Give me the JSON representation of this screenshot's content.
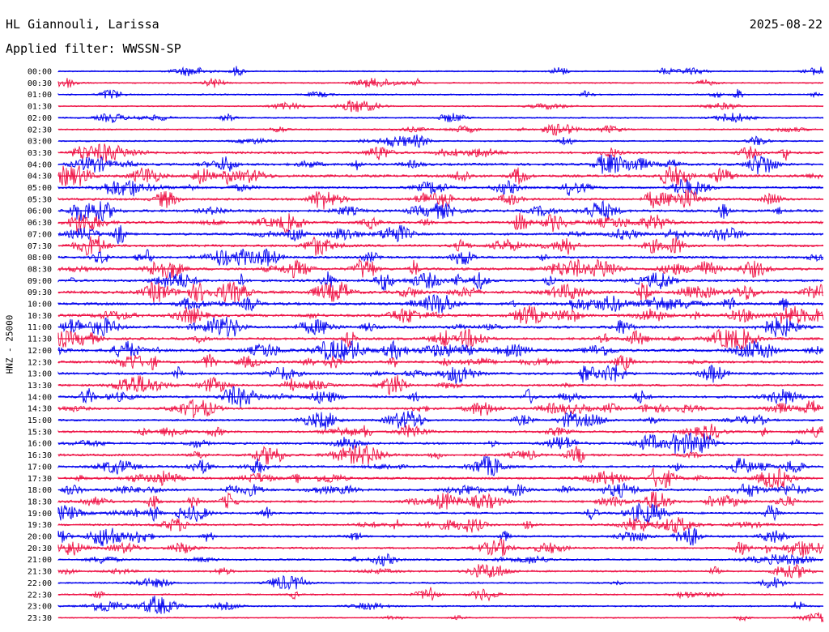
{
  "header": {
    "station": "HL Giannouli, Larissa",
    "date": "2025-08-22",
    "filter": "Applied filter: WWSSN-SP"
  },
  "chart_data": {
    "type": "line",
    "title": "HL Giannouli, Larissa",
    "ylabel": "HNZ - 25000",
    "row_colors": [
      "#0000ee",
      "#ee1144"
    ],
    "categories": [
      "00:00",
      "00:30",
      "01:00",
      "01:30",
      "02:00",
      "02:30",
      "03:00",
      "03:30",
      "04:00",
      "04:30",
      "05:00",
      "05:30",
      "06:00",
      "06:30",
      "07:00",
      "07:30",
      "08:00",
      "08:30",
      "09:00",
      "09:30",
      "10:00",
      "10:30",
      "11:00",
      "11:30",
      "12:00",
      "12:30",
      "13:00",
      "13:30",
      "14:00",
      "14:30",
      "15:00",
      "15:30",
      "16:00",
      "16:30",
      "17:00",
      "17:30",
      "18:00",
      "18:30",
      "19:00",
      "19:30",
      "20:00",
      "20:30",
      "21:00",
      "21:30",
      "22:00",
      "22:30",
      "23:00",
      "23:30"
    ],
    "noise_level": [
      0.12,
      0.12,
      0.15,
      0.1,
      0.15,
      0.2,
      0.15,
      0.45,
      0.5,
      0.55,
      0.4,
      0.45,
      0.55,
      0.5,
      0.45,
      0.5,
      0.45,
      0.55,
      0.5,
      0.65,
      0.6,
      0.6,
      0.55,
      0.55,
      0.6,
      0.5,
      0.5,
      0.4,
      0.45,
      0.4,
      0.35,
      0.4,
      0.4,
      0.45,
      0.4,
      0.45,
      0.45,
      0.45,
      0.4,
      0.35,
      0.35,
      0.35,
      0.3,
      0.3,
      0.2,
      0.2,
      0.2,
      0.05
    ]
  }
}
